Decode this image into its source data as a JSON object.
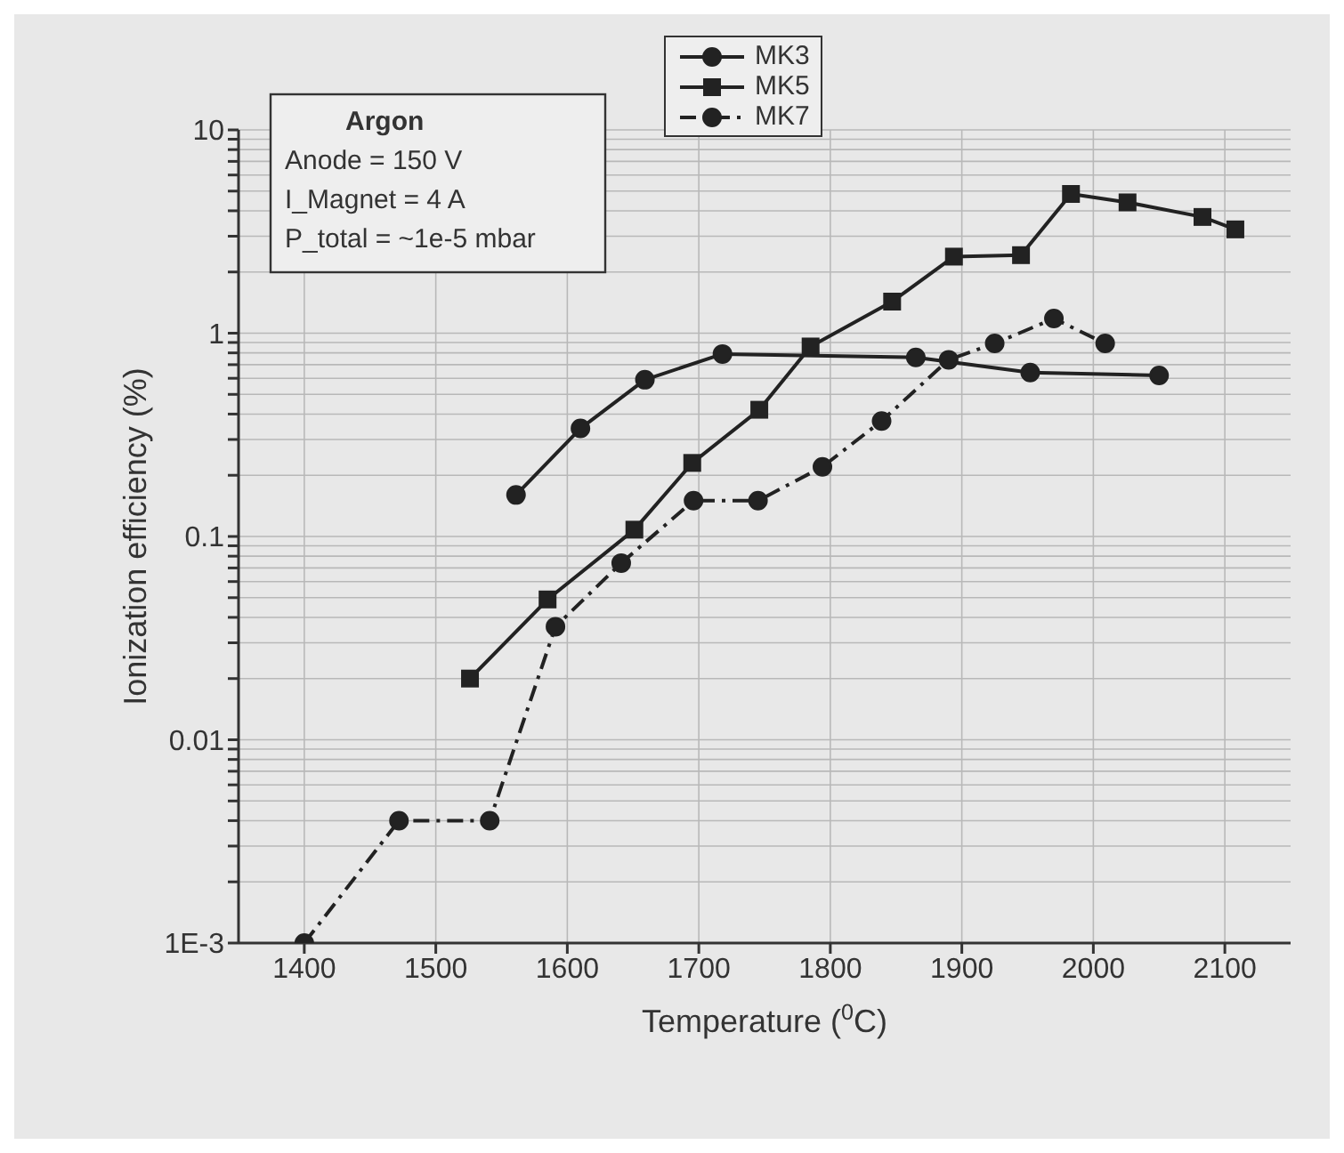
{
  "chart_data": {
    "type": "line",
    "xlabel": "Temperature ($^{0}$C)",
    "ylabel": "Ionization efficiency (%)",
    "annotations": [
      "Argon",
      "Anode = 150 V",
      "I_Magnet = 4 A",
      "P_total = ~1e-5 mbar"
    ],
    "log": "y",
    "grid": true,
    "legend": "top",
    "xlim": [
      1350,
      2150
    ],
    "xticks": [
      1400,
      1500,
      1600,
      1700,
      1800,
      1900,
      2000,
      2100
    ],
    "ylim": [
      0.001,
      10
    ],
    "yticks": [
      {
        "value": 0.001,
        "label": "1E-3"
      },
      {
        "value": 0.002,
        "label": null
      },
      {
        "value": 0.003,
        "label": null
      },
      {
        "value": 0.004,
        "label": null
      },
      {
        "value": 0.005,
        "label": null
      },
      {
        "value": 0.006,
        "label": null
      },
      {
        "value": 0.007,
        "label": null
      },
      {
        "value": 0.008,
        "label": null
      },
      {
        "value": 0.009,
        "label": null
      },
      0.01,
      {
        "value": 0.02,
        "label": null
      },
      {
        "value": 0.03,
        "label": null
      },
      {
        "value": 0.04,
        "label": null
      },
      {
        "value": 0.05,
        "label": null
      },
      {
        "value": 0.06,
        "label": null
      },
      {
        "value": 0.07,
        "label": null
      },
      {
        "value": 0.08,
        "label": null
      },
      {
        "value": 0.09,
        "label": null
      },
      0.1,
      {
        "value": 0.2,
        "label": null
      },
      {
        "value": 0.3,
        "label": null
      },
      {
        "value": 0.4,
        "label": null
      },
      {
        "value": 0.5,
        "label": null
      },
      {
        "value": 0.6,
        "label": null
      },
      {
        "value": 0.7,
        "label": null
      },
      {
        "value": 0.8,
        "label": null
      },
      {
        "value": 0.9,
        "label": null
      },
      1,
      {
        "value": 2,
        "label": null
      },
      {
        "value": 3,
        "label": null
      },
      {
        "value": 4,
        "label": null
      },
      {
        "value": 5,
        "label": null
      },
      {
        "value": 6,
        "label": null
      },
      {
        "value": 7,
        "label": null
      },
      {
        "value": 8,
        "label": null
      },
      {
        "value": 9,
        "label": null
      },
      10
    ],
    "series": [
      {
        "name": "MK3",
        "color": "#222222",
        "marker": "circle",
        "line_style": "solid",
        "x": [
          1561,
          1610,
          1659,
          1718,
          1865,
          1952,
          2050
        ],
        "values": [
          0.16,
          0.34,
          0.59,
          0.79,
          0.76,
          0.64,
          0.62
        ]
      },
      {
        "name": "MK5",
        "color": "#222222",
        "marker": "square",
        "line_style": "solid",
        "x": [
          1526,
          1585,
          1651,
          1695,
          1746,
          1785,
          1847,
          1894,
          1945,
          1983,
          2026,
          2083,
          2108
        ],
        "values": [
          0.02,
          0.049,
          0.108,
          0.23,
          0.42,
          0.86,
          1.43,
          2.38,
          2.42,
          4.84,
          4.4,
          3.73,
          3.24
        ]
      },
      {
        "name": "MK7",
        "color": "#222222",
        "marker": "circle",
        "line_style": "dashed",
        "x": [
          1400,
          1472,
          1541,
          1591,
          1641,
          1696,
          1745,
          1794,
          1839,
          1890,
          1925,
          1970,
          2009
        ],
        "values": [
          0.001,
          0.004,
          0.004,
          0.036,
          0.074,
          0.15,
          0.15,
          0.22,
          0.37,
          0.74,
          0.89,
          1.18,
          0.89
        ]
      }
    ]
  }
}
